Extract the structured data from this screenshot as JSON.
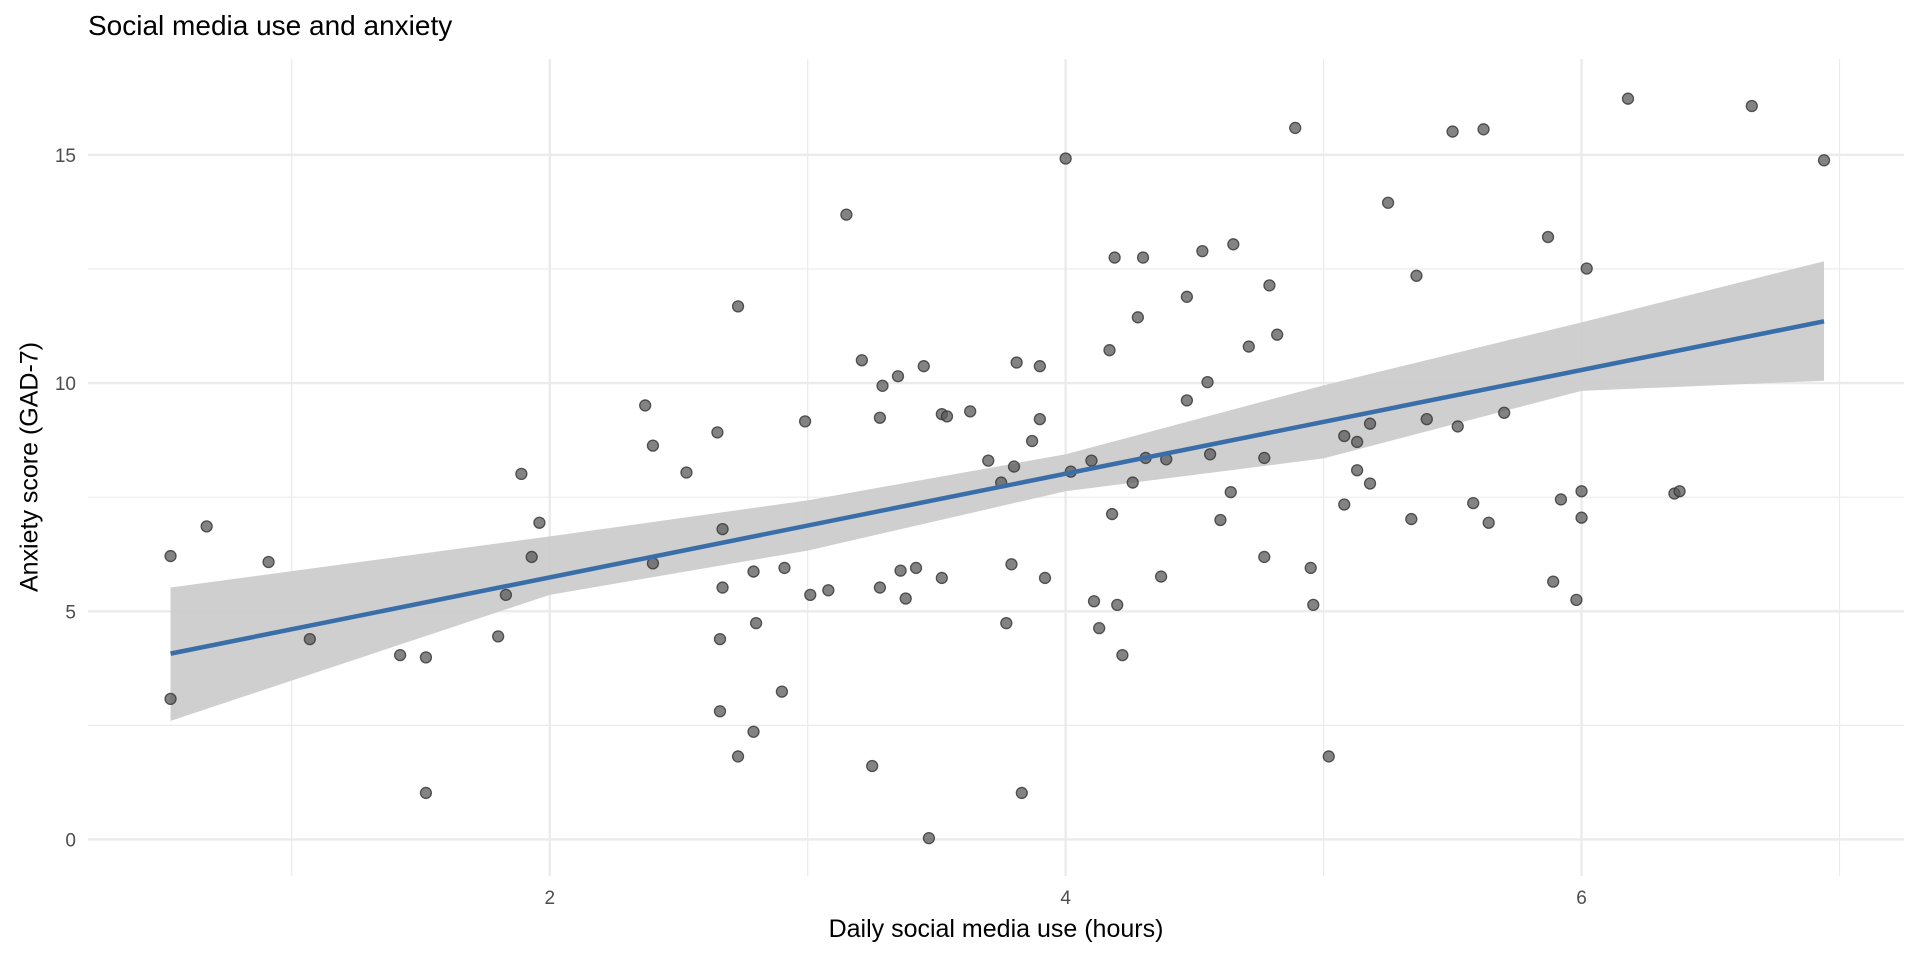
{
  "chart_data": {
    "type": "scatter",
    "title": "Social media use and anxiety",
    "xlabel": "Daily social media use (hours)",
    "ylabel": "Anxiety score (GAD-7)",
    "xlim": [
      0.21,
      7.25
    ],
    "ylim": [
      -0.8,
      17.1
    ],
    "x_ticks": [
      2,
      4,
      6
    ],
    "y_ticks": [
      0,
      5,
      10,
      15
    ],
    "grid": true,
    "colors": {
      "points": "#595959",
      "fit_line": "#3a6ea8",
      "ci_band": "#cccccc",
      "grid": "#ebebeb"
    },
    "fit": {
      "type": "linear",
      "intercept": 3.47,
      "slope": 1.136,
      "x_range": [
        0.53,
        6.94
      ],
      "ci_band": {
        "x": [
          0.53,
          2,
          3,
          4,
          5,
          6,
          6.94
        ],
        "lower": [
          2.6,
          5.36,
          6.33,
          7.63,
          8.35,
          9.83,
          10.05
        ],
        "upper": [
          5.52,
          6.64,
          7.43,
          8.44,
          9.95,
          11.33,
          12.67
        ]
      }
    },
    "points": [
      [
        0.53,
        6.21
      ],
      [
        0.53,
        3.08
      ],
      [
        0.67,
        6.86
      ],
      [
        0.91,
        6.08
      ],
      [
        1.07,
        4.39
      ],
      [
        1.42,
        4.04
      ],
      [
        1.52,
        3.99
      ],
      [
        1.52,
        1.02
      ],
      [
        1.8,
        4.45
      ],
      [
        1.83,
        5.36
      ],
      [
        1.89,
        8.01
      ],
      [
        1.93,
        6.19
      ],
      [
        1.96,
        6.94
      ],
      [
        2.37,
        9.51
      ],
      [
        2.4,
        8.63
      ],
      [
        2.4,
        6.05
      ],
      [
        2.53,
        8.04
      ],
      [
        2.65,
        8.92
      ],
      [
        2.66,
        4.39
      ],
      [
        2.66,
        2.81
      ],
      [
        2.67,
        6.8
      ],
      [
        2.67,
        5.52
      ],
      [
        2.73,
        11.68
      ],
      [
        2.73,
        1.82
      ],
      [
        2.79,
        5.87
      ],
      [
        2.79,
        2.36
      ],
      [
        2.8,
        4.74
      ],
      [
        2.9,
        3.24
      ],
      [
        2.91,
        5.95
      ],
      [
        2.99,
        9.16
      ],
      [
        3.01,
        5.36
      ],
      [
        3.08,
        5.46
      ],
      [
        3.15,
        13.69
      ],
      [
        3.21,
        10.5
      ],
      [
        3.25,
        1.61
      ],
      [
        3.28,
        9.24
      ],
      [
        3.28,
        5.52
      ],
      [
        3.29,
        9.94
      ],
      [
        3.35,
        10.15
      ],
      [
        3.36,
        5.89
      ],
      [
        3.38,
        5.28
      ],
      [
        3.42,
        5.95
      ],
      [
        3.45,
        10.37
      ],
      [
        3.47,
        0.03
      ],
      [
        3.52,
        9.32
      ],
      [
        3.52,
        5.73
      ],
      [
        3.54,
        9.27
      ],
      [
        3.63,
        9.38
      ],
      [
        3.7,
        8.3
      ],
      [
        3.75,
        7.82
      ],
      [
        3.77,
        4.74
      ],
      [
        3.79,
        6.03
      ],
      [
        3.8,
        8.17
      ],
      [
        3.81,
        10.45
      ],
      [
        3.83,
        1.02
      ],
      [
        3.87,
        8.73
      ],
      [
        3.9,
        9.21
      ],
      [
        3.9,
        10.37
      ],
      [
        3.92,
        5.73
      ],
      [
        4.0,
        14.92
      ],
      [
        4.02,
        8.06
      ],
      [
        4.1,
        8.3
      ],
      [
        4.11,
        5.22
      ],
      [
        4.13,
        4.63
      ],
      [
        4.17,
        10.72
      ],
      [
        4.18,
        7.13
      ],
      [
        4.19,
        12.75
      ],
      [
        4.2,
        5.14
      ],
      [
        4.22,
        4.04
      ],
      [
        4.26,
        7.82
      ],
      [
        4.28,
        11.44
      ],
      [
        4.3,
        12.75
      ],
      [
        4.31,
        8.36
      ],
      [
        4.37,
        5.76
      ],
      [
        4.39,
        8.33
      ],
      [
        4.47,
        11.89
      ],
      [
        4.47,
        9.62
      ],
      [
        4.53,
        12.89
      ],
      [
        4.55,
        10.02
      ],
      [
        4.56,
        8.44
      ],
      [
        4.6,
        7.0
      ],
      [
        4.64,
        7.61
      ],
      [
        4.65,
        13.04
      ],
      [
        4.71,
        10.8
      ],
      [
        4.77,
        8.36
      ],
      [
        4.77,
        6.19
      ],
      [
        4.79,
        12.14
      ],
      [
        4.82,
        11.06
      ],
      [
        4.89,
        15.59
      ],
      [
        4.95,
        5.95
      ],
      [
        4.96,
        5.14
      ],
      [
        5.02,
        1.82
      ],
      [
        5.08,
        8.84
      ],
      [
        5.08,
        7.34
      ],
      [
        5.13,
        8.09
      ],
      [
        5.13,
        8.71
      ],
      [
        5.18,
        9.11
      ],
      [
        5.18,
        7.8
      ],
      [
        5.25,
        13.95
      ],
      [
        5.34,
        7.02
      ],
      [
        5.36,
        12.35
      ],
      [
        5.4,
        9.21
      ],
      [
        5.5,
        15.51
      ],
      [
        5.52,
        9.05
      ],
      [
        5.58,
        7.37
      ],
      [
        5.62,
        15.56
      ],
      [
        5.64,
        6.94
      ],
      [
        5.7,
        9.35
      ],
      [
        5.87,
        13.2
      ],
      [
        5.89,
        5.65
      ],
      [
        5.92,
        7.45
      ],
      [
        5.98,
        5.25
      ],
      [
        6.0,
        7.05
      ],
      [
        6.0,
        7.63
      ],
      [
        6.02,
        12.51
      ],
      [
        6.18,
        16.23
      ],
      [
        6.36,
        7.58
      ],
      [
        6.38,
        7.63
      ],
      [
        6.66,
        16.07
      ],
      [
        6.94,
        14.88
      ]
    ]
  }
}
